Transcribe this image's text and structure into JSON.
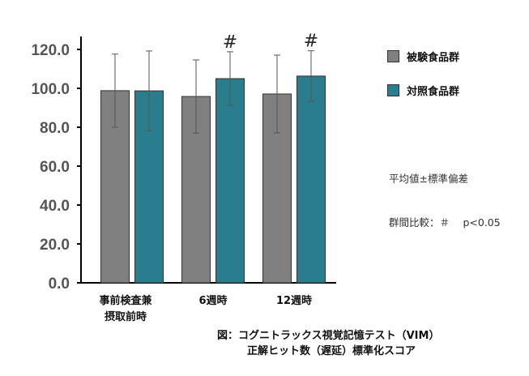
{
  "chart_data": {
    "type": "bar",
    "categories": [
      [
        "事前検査兼",
        "摂取前時"
      ],
      [
        "6週時"
      ],
      [
        "12週時"
      ]
    ],
    "series": [
      {
        "name": "被験食品群",
        "color": "#808080",
        "values": [
          98.8,
          95.8,
          97.1
        ],
        "error": [
          18.8,
          18.8,
          20.0
        ]
      },
      {
        "name": "対照食品群",
        "color": "#2a7d8c",
        "values": [
          98.7,
          105.0,
          106.3
        ],
        "error": [
          20.5,
          13.8,
          13.0
        ]
      }
    ],
    "ylim": [
      0,
      125
    ],
    "yticks": [
      "0.0",
      "20.0",
      "40.0",
      "60.0",
      "80.0",
      "100.0",
      "120.0"
    ],
    "significance": [
      null,
      "#",
      "#"
    ],
    "legend_position": "right",
    "grid": false
  },
  "stat_note": {
    "line1": "平均値±標準偏差",
    "line2": "群間比較：＃　 p<0.05"
  },
  "caption": {
    "line1": "図：コグニトラックス視覚記憶テスト（VIM）",
    "line2": "正解ヒット数（遅延）標準化スコア"
  }
}
